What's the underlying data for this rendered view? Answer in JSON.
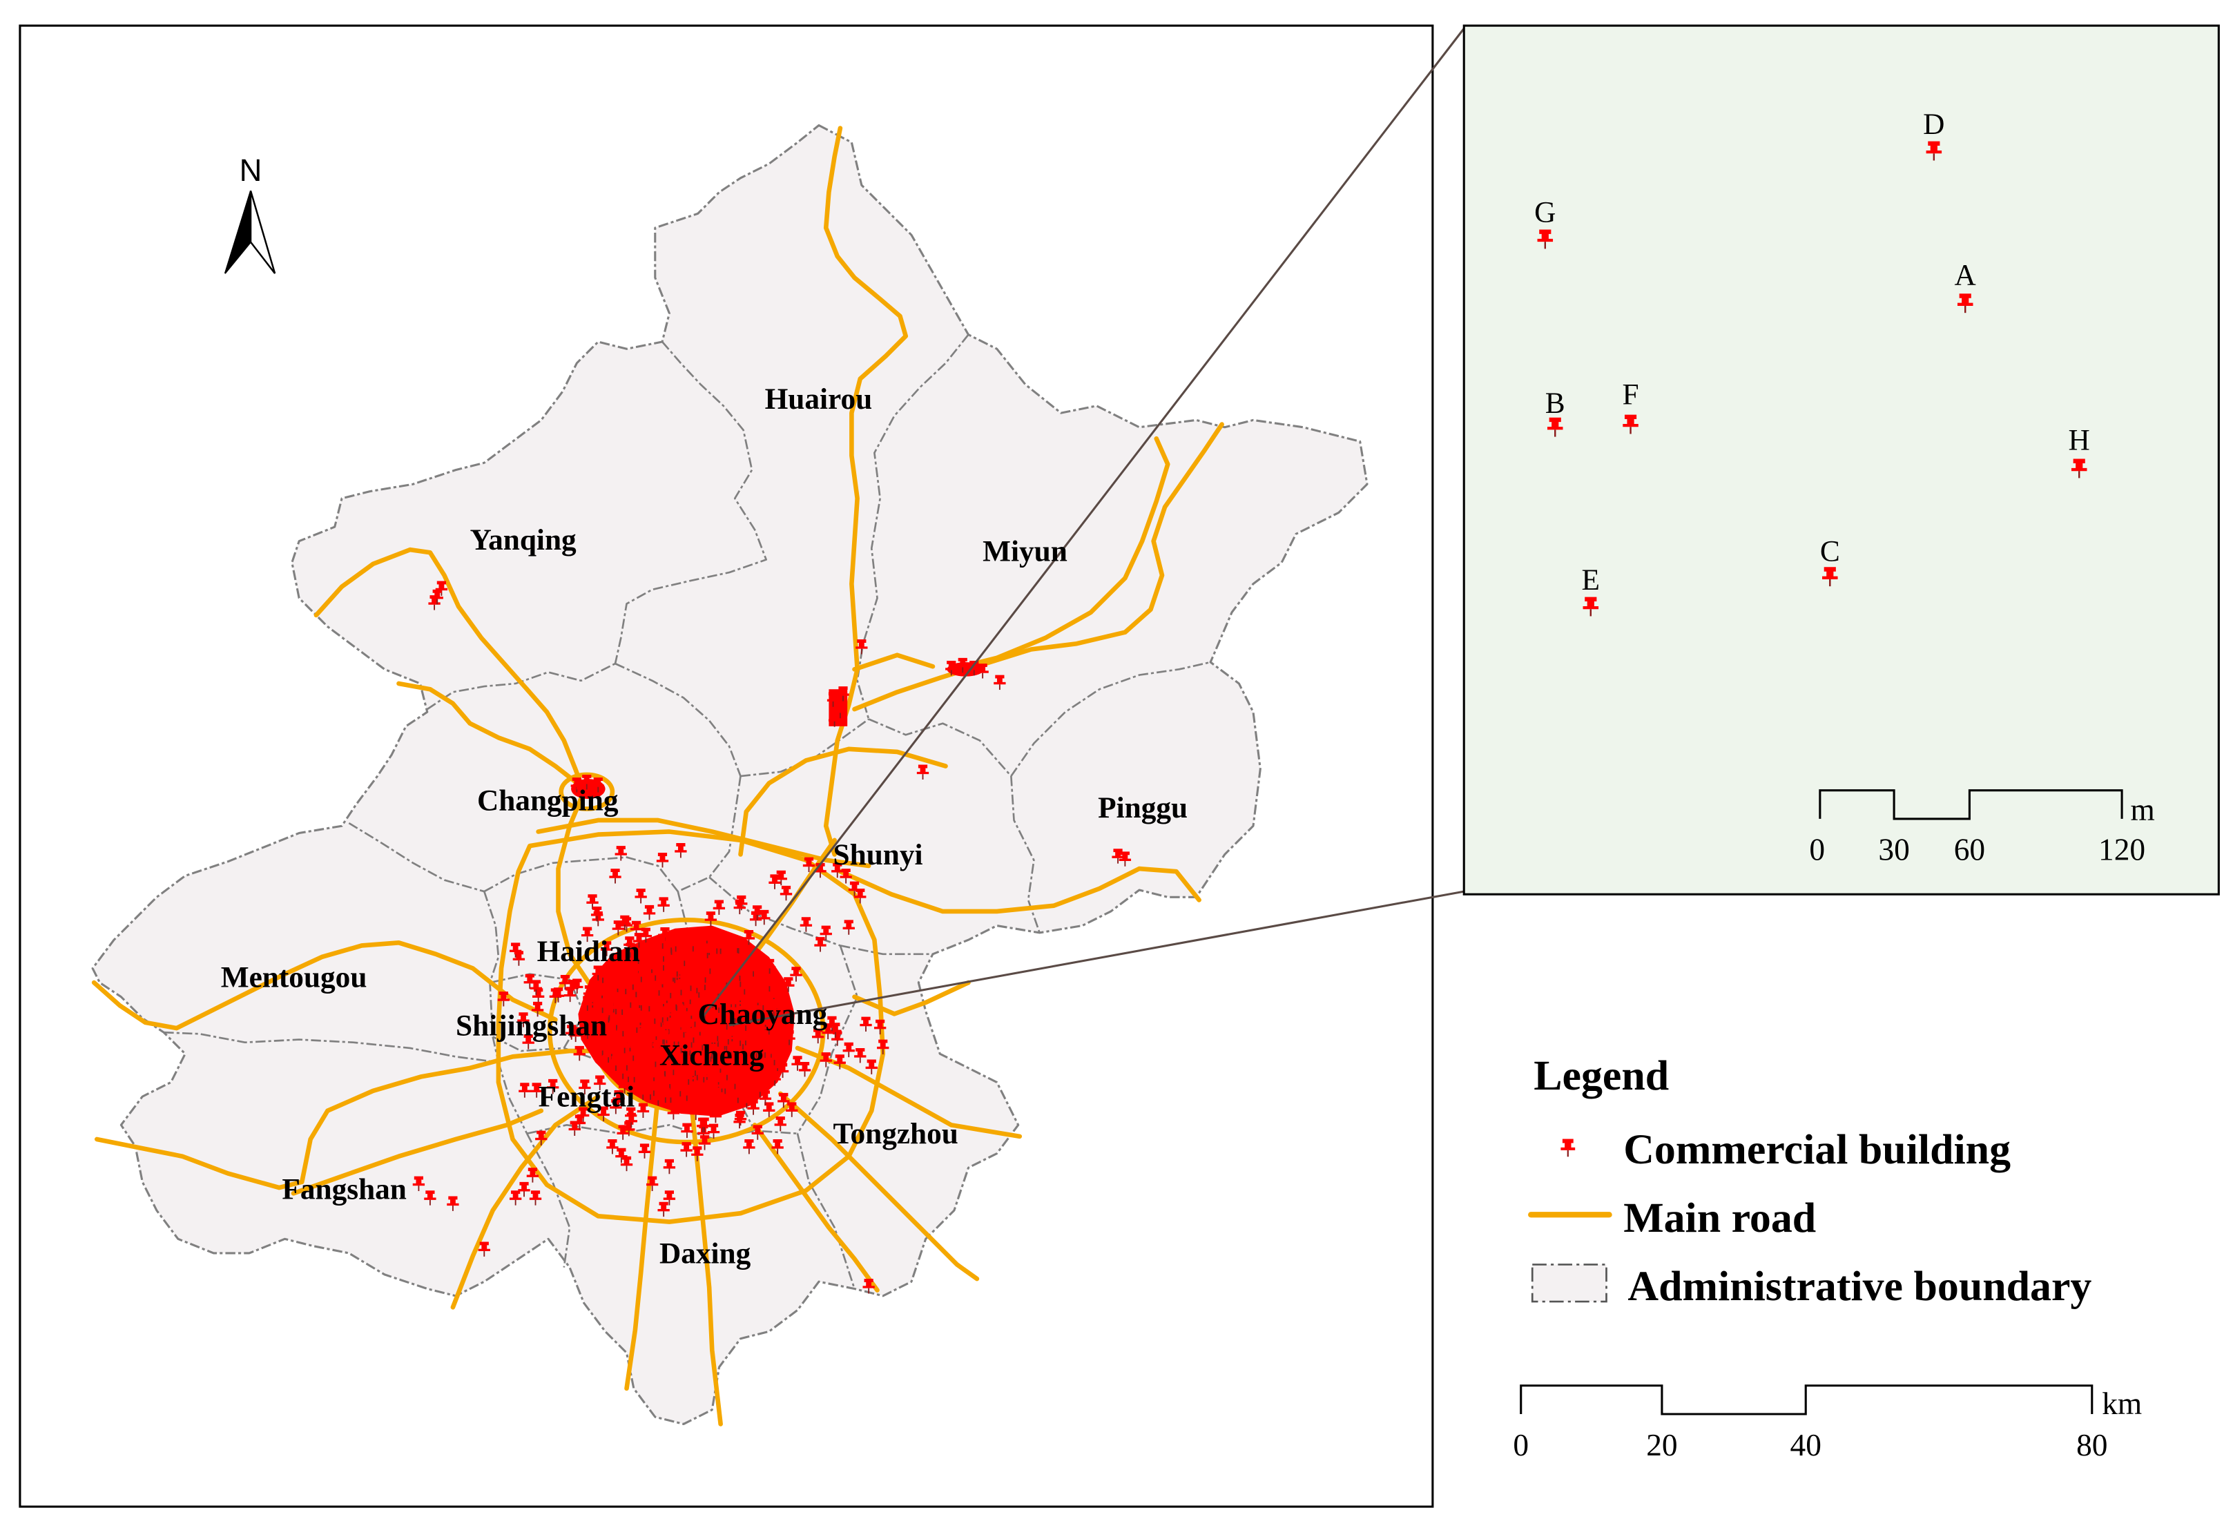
{
  "map": {
    "north_label": "N",
    "districts": [
      {
        "name": "Huairou"
      },
      {
        "name": "Yanqing"
      },
      {
        "name": "Miyun"
      },
      {
        "name": "Changping"
      },
      {
        "name": "Pinggu"
      },
      {
        "name": "Shunyi"
      },
      {
        "name": "Haidian"
      },
      {
        "name": "Mentougou"
      },
      {
        "name": "Shijingshan"
      },
      {
        "name": "Chaoyang"
      },
      {
        "name": "Xicheng"
      },
      {
        "name": "Fengtai"
      },
      {
        "name": "Tongzhou"
      },
      {
        "name": "Fangshan"
      },
      {
        "name": "Daxing"
      }
    ]
  },
  "inset": {
    "points": [
      {
        "label": "D"
      },
      {
        "label": "G"
      },
      {
        "label": "A"
      },
      {
        "label": "B"
      },
      {
        "label": "F"
      },
      {
        "label": "H"
      },
      {
        "label": "C"
      },
      {
        "label": "E"
      }
    ],
    "scale_bar": {
      "tick_labels": [
        "0",
        "30",
        "60",
        "120"
      ],
      "unit": "m"
    }
  },
  "legend": {
    "title": "Legend",
    "items": [
      {
        "label": "Commercial building",
        "symbol": "red-pushpin-icon"
      },
      {
        "label": "Main road",
        "symbol": "orange-line"
      },
      {
        "label": "Administrative boundary",
        "symbol": "dash-dot-outline-box"
      }
    ]
  },
  "scale_bar": {
    "tick_labels": [
      "0",
      "20",
      "40",
      "80"
    ],
    "unit": "km"
  },
  "colors": {
    "commercial_building": "#ff0000",
    "main_road": "#f5a800",
    "district_fill": "#f4f1f2",
    "boundary": "#808080",
    "inset_background": "#eef5ec"
  }
}
